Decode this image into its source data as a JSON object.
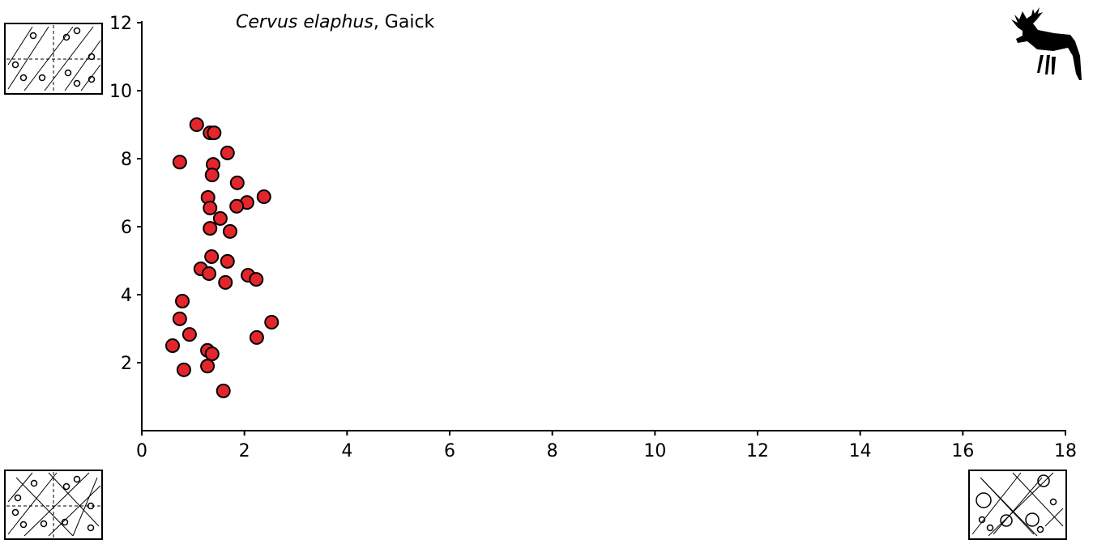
{
  "chart_data": {
    "type": "scatter",
    "title_parts": [
      "Cervus elaphus",
      ", Gaick"
    ],
    "color": "#e3262b",
    "xlim": [
      0,
      18
    ],
    "xticks": [
      0,
      2,
      4,
      6,
      8,
      10,
      12,
      14,
      16,
      18
    ],
    "ylim": [
      0,
      12
    ],
    "yticks": [
      2,
      4,
      6,
      8,
      10,
      12
    ],
    "x": [
      1.07,
      1.33,
      1.41,
      0.74,
      1.67,
      1.39,
      1.37,
      1.86,
      2.38,
      1.29,
      1.33,
      2.05,
      1.85,
      1.53,
      1.33,
      1.72,
      1.36,
      1.67,
      1.15,
      1.31,
      2.07,
      2.23,
      1.63,
      0.79,
      0.74,
      2.53,
      0.93,
      2.24,
      0.6,
      1.28,
      1.37,
      1.28,
      0.82,
      1.59
    ],
    "y": [
      9.0,
      8.76,
      8.76,
      7.9,
      8.17,
      7.83,
      7.52,
      7.29,
      6.88,
      6.86,
      6.55,
      6.71,
      6.6,
      6.24,
      5.95,
      5.86,
      5.12,
      4.98,
      4.76,
      4.62,
      4.57,
      4.45,
      4.36,
      3.81,
      3.29,
      3.19,
      2.83,
      2.74,
      2.5,
      2.36,
      2.26,
      1.9,
      1.79,
      1.17
    ]
  }
}
